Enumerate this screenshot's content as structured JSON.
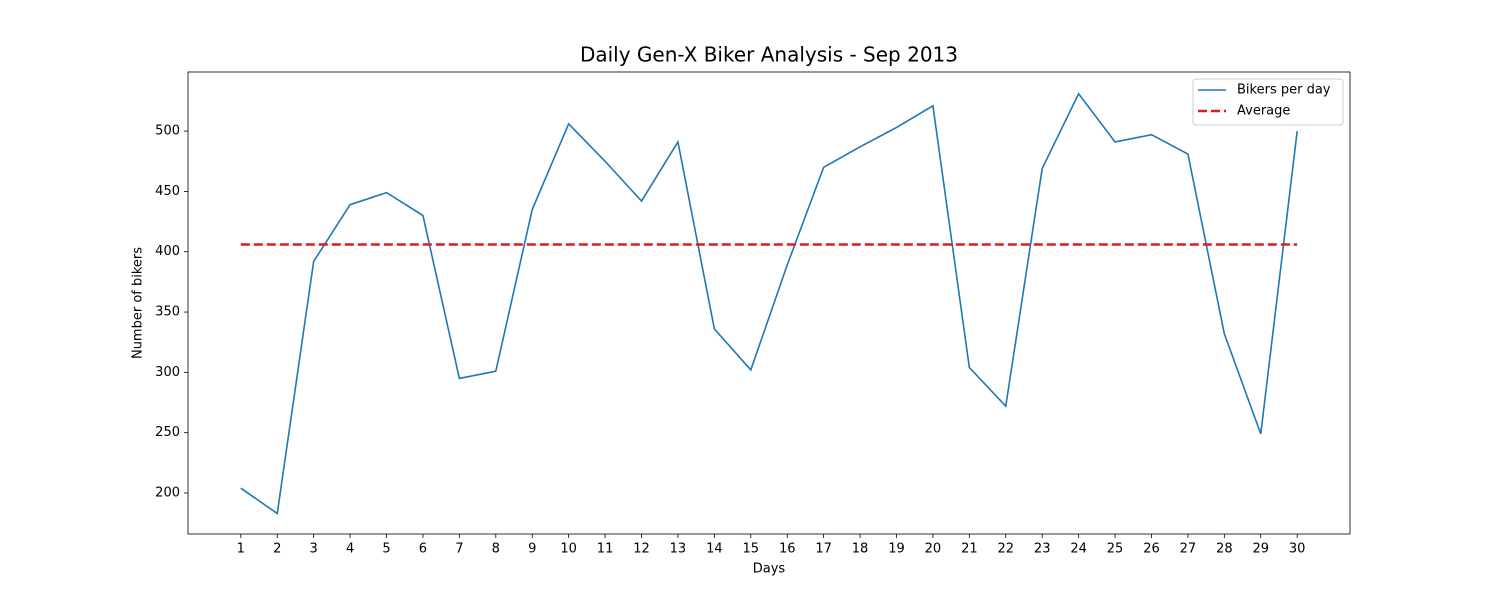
{
  "chart_data": {
    "type": "line",
    "title": "Daily Gen-X Biker Analysis - Sep 2013",
    "x_label": "Days",
    "y_label": "Number of bikers",
    "x": [
      1,
      2,
      3,
      4,
      5,
      6,
      7,
      8,
      9,
      10,
      11,
      12,
      13,
      14,
      15,
      16,
      17,
      18,
      19,
      20,
      21,
      22,
      23,
      24,
      25,
      26,
      27,
      28,
      29,
      30
    ],
    "series": [
      {
        "name": "Bikers per day",
        "color": "#1f77b4",
        "dashed": false,
        "values": [
          204,
          183,
          392,
          439,
          449,
          430,
          295,
          301,
          435,
          506,
          475,
          442,
          491,
          336,
          302,
          389,
          470,
          487,
          503,
          521,
          304,
          272,
          469,
          531,
          491,
          497,
          481,
          332,
          249,
          500
        ]
      },
      {
        "name": "Average",
        "color": "#e31a1c",
        "dashed": true,
        "values": [
          406,
          406,
          406,
          406,
          406,
          406,
          406,
          406,
          406,
          406,
          406,
          406,
          406,
          406,
          406,
          406,
          406,
          406,
          406,
          406,
          406,
          406,
          406,
          406,
          406,
          406,
          406,
          406,
          406,
          406
        ]
      }
    ],
    "xlim": [
      -0.45,
      31.45
    ],
    "xticks": [
      1,
      2,
      3,
      4,
      5,
      6,
      7,
      8,
      9,
      10,
      11,
      12,
      13,
      14,
      15,
      16,
      17,
      18,
      19,
      20,
      21,
      22,
      23,
      24,
      25,
      26,
      27,
      28,
      29,
      30
    ],
    "ylim": [
      166,
      549
    ],
    "yticks": [
      200,
      250,
      300,
      350,
      400,
      450,
      500
    ],
    "legend": "upper right",
    "grid": false
  }
}
